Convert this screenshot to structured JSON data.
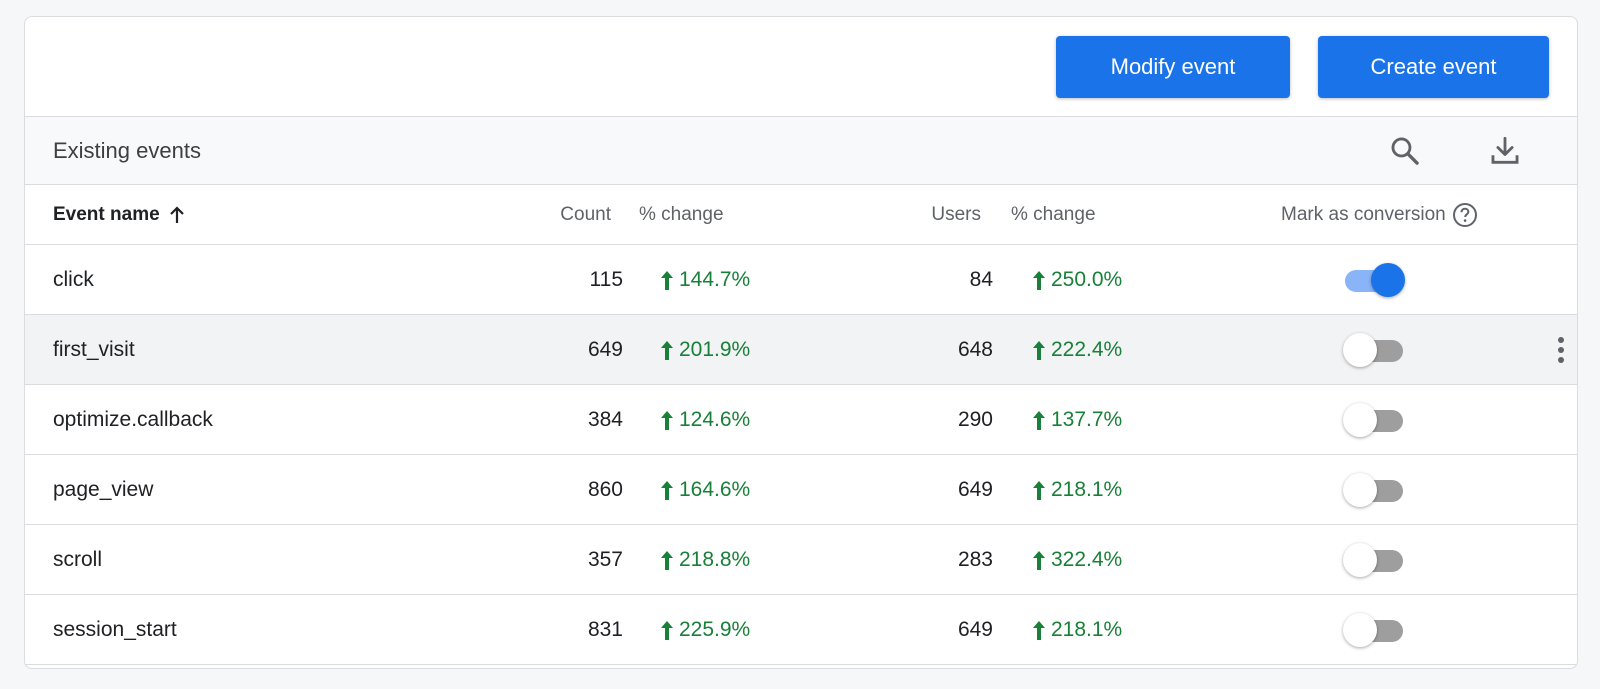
{
  "actions": {
    "modify_label": "Modify event",
    "create_label": "Create event"
  },
  "subheader": {
    "title": "Existing events",
    "icons": [
      "search-icon",
      "download-icon"
    ]
  },
  "columns": {
    "event_name": "Event name",
    "count": "Count",
    "count_change": "% change",
    "users": "Users",
    "users_change": "% change",
    "mark_as_conversion": "Mark as conversion"
  },
  "rows": [
    {
      "name": "click",
      "count": "115",
      "count_change": "144.7%",
      "users": "84",
      "users_change": "250.0%",
      "conversion": true
    },
    {
      "name": "first_visit",
      "count": "649",
      "count_change": "201.9%",
      "users": "648",
      "users_change": "222.4%",
      "conversion": false
    },
    {
      "name": "optimize.callback",
      "count": "384",
      "count_change": "124.6%",
      "users": "290",
      "users_change": "137.7%",
      "conversion": false
    },
    {
      "name": "page_view",
      "count": "860",
      "count_change": "164.6%",
      "users": "649",
      "users_change": "218.1%",
      "conversion": false
    },
    {
      "name": "scroll",
      "count": "357",
      "count_change": "218.8%",
      "users": "283",
      "users_change": "322.4%",
      "conversion": false
    },
    {
      "name": "session_start",
      "count": "831",
      "count_change": "225.9%",
      "users": "649",
      "users_change": "218.1%",
      "conversion": false
    }
  ],
  "colors": {
    "primary": "#1a73e8",
    "positive": "#188038",
    "toggle_on_track": "#8ab4f8",
    "toggle_off_track": "#9e9e9e"
  }
}
